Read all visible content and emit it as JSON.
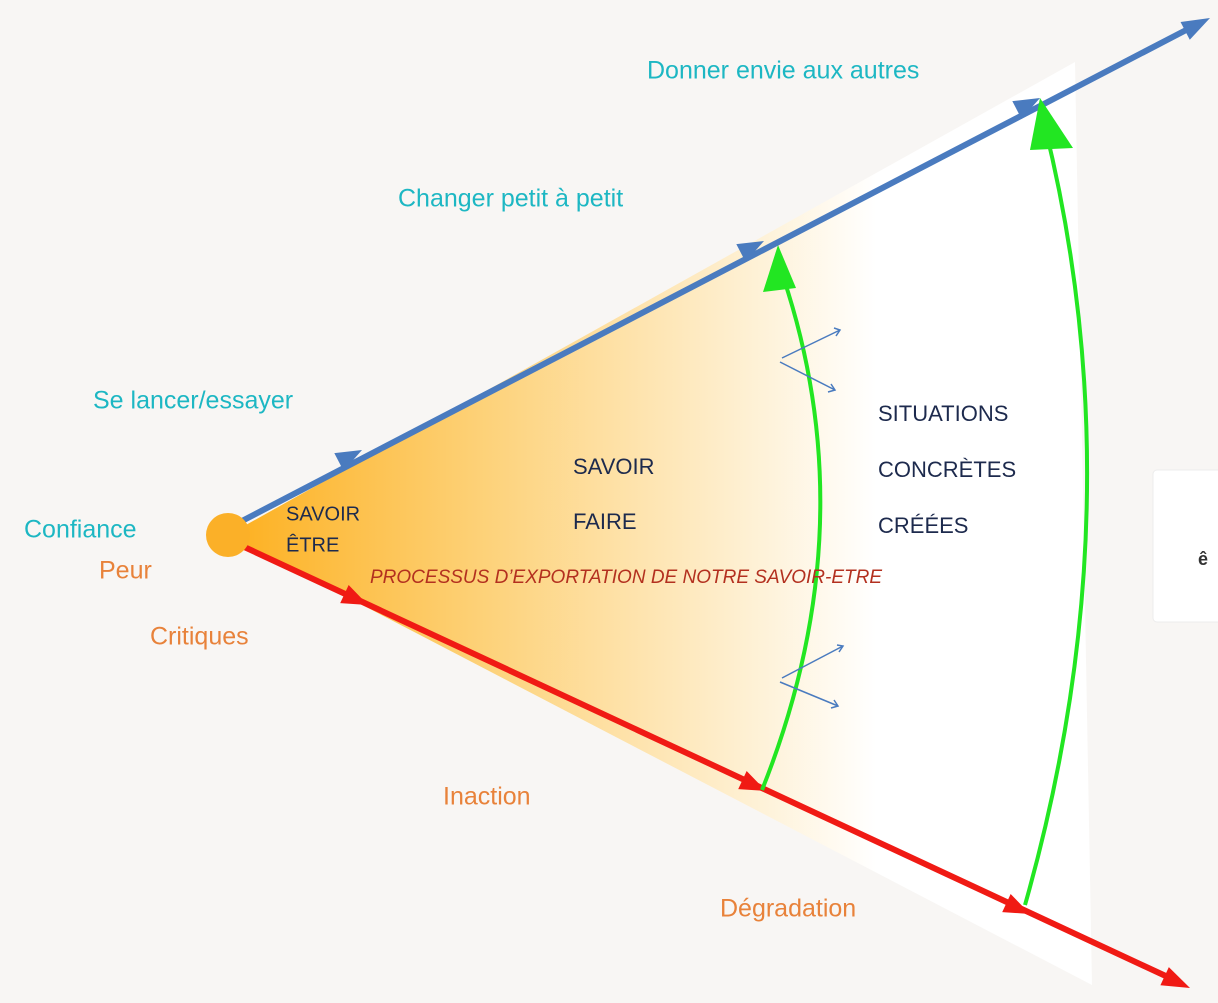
{
  "labels": {
    "top": "Donner envie aux autres",
    "middle": "Changer petit à petit",
    "start": "Se lancer/essayer",
    "confidence": "Confiance",
    "fear": "Peur",
    "criticism": "Critiques",
    "inaction": "Inaction",
    "degradation": "Dégradation"
  },
  "zones": {
    "savoir_etre": [
      "SAVOIR",
      "ÊTRE"
    ],
    "savoir_faire": [
      "SAVOIR",
      "FAIRE"
    ],
    "situations": [
      "SITUATIONS",
      "CONCRÈTES",
      "CRÉÉES"
    ]
  },
  "process": "PROCESSUS D’EXPORTATION DE NOTRE SAVOIR-ETRE",
  "side_card": "ê"
}
